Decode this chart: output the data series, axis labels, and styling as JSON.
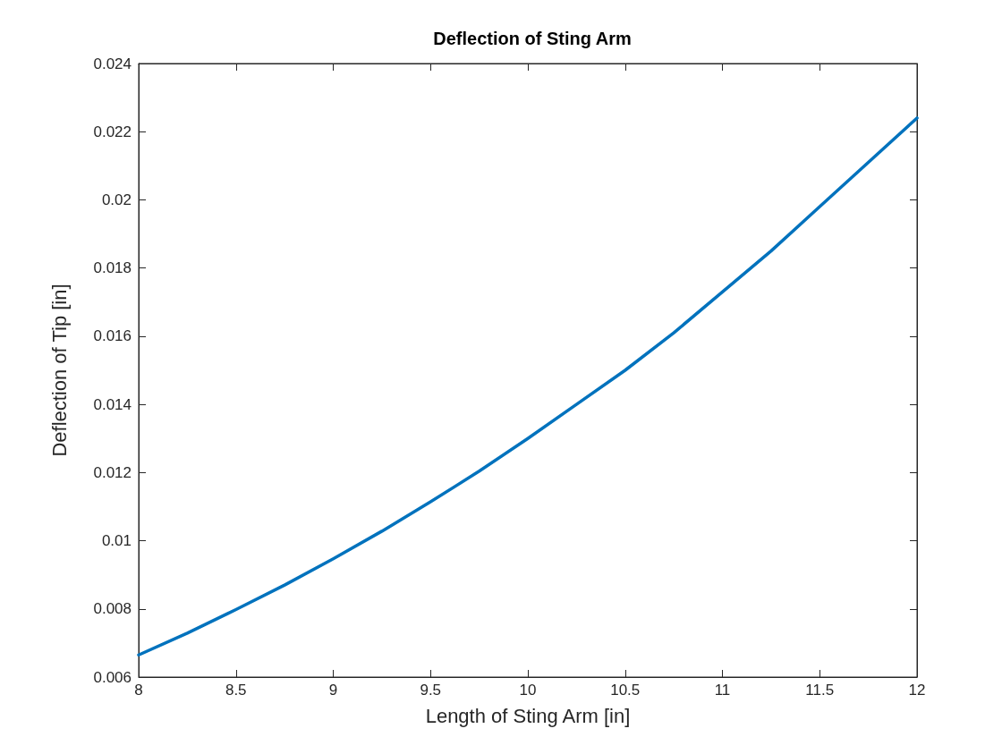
{
  "chart_data": {
    "type": "line",
    "title": "Deflection of Sting Arm",
    "xlabel": "Length of Sting Arm [in]",
    "ylabel": "Deflection of Tip [in]",
    "x": [
      8,
      8.25,
      8.5,
      8.75,
      9,
      9.25,
      9.5,
      9.75,
      10,
      10.25,
      10.5,
      10.75,
      11,
      11.25,
      11.5,
      11.75,
      12
    ],
    "series": [
      {
        "color": "#0072bd",
        "values": [
          0.00665,
          0.00729,
          0.00798,
          0.0087,
          0.00947,
          0.01028,
          0.01114,
          0.01204,
          0.013,
          0.014,
          0.015,
          0.0161,
          0.0173,
          0.0185,
          0.0198,
          0.0211,
          0.0224
        ]
      }
    ],
    "xlim": [
      8,
      12
    ],
    "xticks": [
      8,
      8.5,
      9,
      9.5,
      10,
      10.5,
      11,
      11.5,
      12
    ],
    "ylim": [
      0.006,
      0.024
    ],
    "yticks": [
      0.006,
      0.008,
      0.01,
      0.012,
      0.014,
      0.016,
      0.018,
      0.02,
      0.022,
      0.024
    ],
    "grid": false,
    "marker": "none",
    "line_style": "solid"
  }
}
